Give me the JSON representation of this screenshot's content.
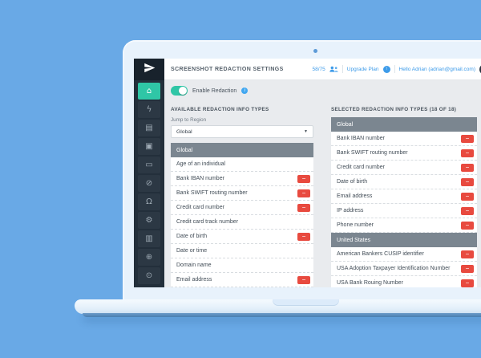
{
  "window": {
    "title": "SCREENSHOT REDACTION SETTINGS"
  },
  "header": {
    "usage_count": "58/75",
    "upgrade_label": "Upgrade Plan",
    "upgrade_arrow": "↑",
    "user_greeting": "Hello Adrian (adrian@gmail.com)"
  },
  "toggle": {
    "label": "Enable Redaction",
    "info_glyph": "i",
    "enabled": true
  },
  "available_panel": {
    "heading": "AVAILABLE REDACTION INFO TYPES",
    "jump_to_region_label": "Jump to Region",
    "region_dropdown_value": "Global",
    "dropdown_caret": "▼",
    "section_title": "Global",
    "items": [
      {
        "label": "Age of an individual",
        "removable": false
      },
      {
        "label": "Bank IBAN number",
        "removable": true
      },
      {
        "label": "Bank SWIFT routing number",
        "removable": true
      },
      {
        "label": "Credit card number",
        "removable": true
      },
      {
        "label": "Credit card track number",
        "removable": false
      },
      {
        "label": "Date of birth",
        "removable": true
      },
      {
        "label": "Date or time",
        "removable": false
      },
      {
        "label": "Domain name",
        "removable": false
      },
      {
        "label": "Email address",
        "removable": true
      }
    ]
  },
  "selected_panel": {
    "heading": "SELECTED REDACTION INFO TYPES (18 OF 18)",
    "sections": [
      {
        "title": "Global",
        "items": [
          "Bank IBAN number",
          "Bank SWIFT routing number",
          "Credit card number",
          "Date of birth",
          "Email address",
          "IP address",
          "Phone number"
        ]
      },
      {
        "title": "United States",
        "items": [
          "American Bankers CUSIP identifier",
          "USA Adoption Taxpayer Identification Number",
          "USA Bank Rouing Number"
        ]
      }
    ]
  },
  "remove_glyph": "−",
  "sidebar": {
    "items": [
      {
        "name": "home",
        "glyph": "⌂",
        "active": true
      },
      {
        "name": "flash",
        "glyph": "ϟ"
      },
      {
        "name": "document",
        "glyph": "▤"
      },
      {
        "name": "camera",
        "glyph": "▣"
      },
      {
        "name": "chat",
        "glyph": "▭"
      },
      {
        "name": "block",
        "glyph": "⊘"
      },
      {
        "name": "bell",
        "glyph": "Ω"
      },
      {
        "name": "settings",
        "glyph": "⚙"
      },
      {
        "name": "library",
        "glyph": "▥"
      },
      {
        "name": "globe",
        "glyph": "⊕"
      },
      {
        "name": "power",
        "glyph": "⊙"
      }
    ]
  },
  "colors": {
    "background_blue": "#69a9e6",
    "accent_teal": "#2fc6a6",
    "link_blue": "#3d9be9",
    "danger_red": "#e84a3f",
    "sidebar_dark": "#232f3b"
  }
}
